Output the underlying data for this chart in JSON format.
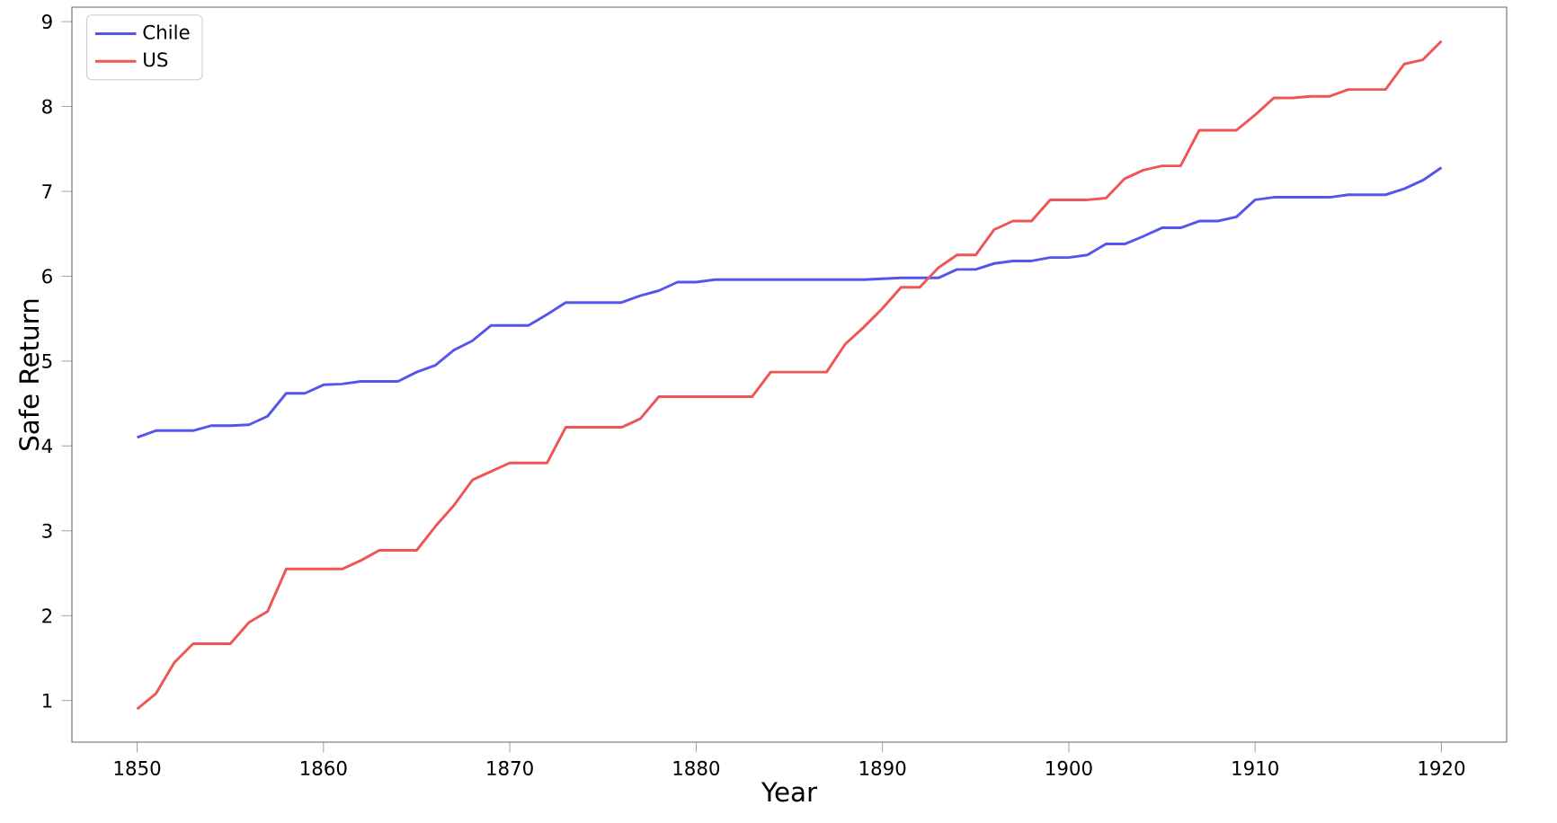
{
  "chart_data": {
    "type": "line",
    "xlabel": "Year",
    "ylabel": "Safe Return",
    "x": [
      1850,
      1851,
      1852,
      1853,
      1854,
      1855,
      1856,
      1857,
      1858,
      1859,
      1860,
      1861,
      1862,
      1863,
      1864,
      1865,
      1866,
      1867,
      1868,
      1869,
      1870,
      1871,
      1872,
      1873,
      1874,
      1875,
      1876,
      1877,
      1878,
      1879,
      1880,
      1881,
      1882,
      1883,
      1884,
      1885,
      1886,
      1887,
      1888,
      1889,
      1890,
      1891,
      1892,
      1893,
      1894,
      1895,
      1896,
      1897,
      1898,
      1899,
      1900,
      1901,
      1902,
      1903,
      1904,
      1905,
      1906,
      1907,
      1908,
      1909,
      1910,
      1911,
      1912,
      1913,
      1914,
      1915,
      1916,
      1917,
      1918,
      1919,
      1920
    ],
    "series": [
      {
        "name": "Chile",
        "color": "#5555ee",
        "values": [
          4.1,
          4.18,
          4.18,
          4.18,
          4.24,
          4.24,
          4.25,
          4.35,
          4.62,
          4.62,
          4.72,
          4.73,
          4.76,
          4.76,
          4.76,
          4.87,
          4.95,
          5.13,
          5.24,
          5.42,
          5.42,
          5.42,
          5.55,
          5.69,
          5.69,
          5.69,
          5.69,
          5.77,
          5.83,
          5.93,
          5.93,
          5.96,
          5.96,
          5.96,
          5.96,
          5.96,
          5.96,
          5.96,
          5.96,
          5.96,
          5.97,
          5.98,
          5.98,
          5.98,
          6.08,
          6.08,
          6.15,
          6.18,
          6.18,
          6.22,
          6.22,
          6.25,
          6.38,
          6.38,
          6.47,
          6.57,
          6.57,
          6.65,
          6.65,
          6.7,
          6.9,
          6.93,
          6.93,
          6.93,
          6.93,
          6.96,
          6.96,
          6.96,
          7.03,
          7.13,
          7.28
        ]
      },
      {
        "name": "US",
        "color": "#ee5555",
        "values": [
          0.9,
          1.08,
          1.45,
          1.67,
          1.67,
          1.67,
          1.92,
          2.05,
          2.55,
          2.55,
          2.55,
          2.55,
          2.65,
          2.77,
          2.77,
          2.77,
          3.05,
          3.3,
          3.6,
          3.7,
          3.8,
          3.8,
          3.8,
          4.22,
          4.22,
          4.22,
          4.22,
          4.32,
          4.58,
          4.58,
          4.58,
          4.58,
          4.58,
          4.58,
          4.87,
          4.87,
          4.87,
          4.87,
          5.2,
          5.4,
          5.62,
          5.87,
          5.87,
          6.1,
          6.25,
          6.25,
          6.55,
          6.65,
          6.65,
          6.9,
          6.9,
          6.9,
          6.92,
          7.15,
          7.25,
          7.3,
          7.3,
          7.72,
          7.72,
          7.72,
          7.9,
          8.1,
          8.1,
          8.12,
          8.12,
          8.2,
          8.2,
          8.2,
          8.5,
          8.55,
          8.77
        ]
      }
    ],
    "xlim": [
      1846.5,
      1923.5
    ],
    "ylim": [
      0.51,
      9.17
    ],
    "xticks": [
      1850,
      1860,
      1870,
      1880,
      1890,
      1900,
      1910,
      1920
    ],
    "yticks": [
      1,
      2,
      3,
      4,
      5,
      6,
      7,
      8,
      9
    ],
    "legend": "top left",
    "marker": "none",
    "line_style": "solid",
    "grid": false
  }
}
